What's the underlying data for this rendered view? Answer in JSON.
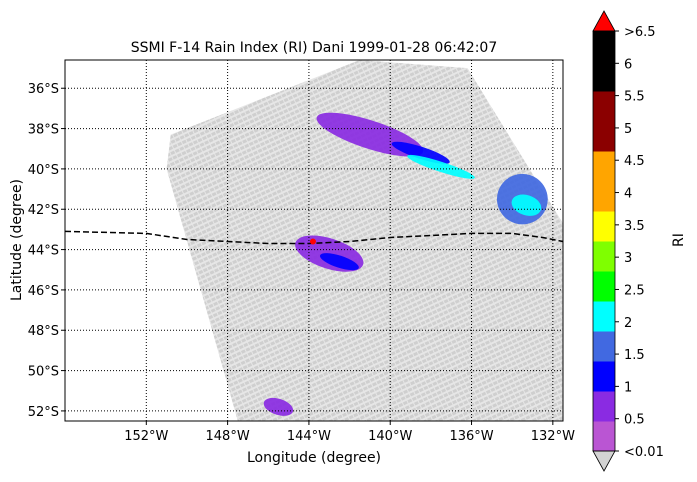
{
  "chart_data": {
    "type": "heatmap",
    "title": "SSMI F-14 Rain Index (RI) Dani 1999-01-28 06:42:07",
    "xlabel": "Longitude (degree)",
    "ylabel": "Latitude (degree)",
    "xlim": [
      -156.0,
      -131.5
    ],
    "ylim": [
      -52.5,
      -34.6
    ],
    "x_ticks": [
      -152,
      -148,
      -144,
      -140,
      -136,
      -132
    ],
    "x_tick_labels": [
      "152°W",
      "148°W",
      "144°W",
      "140°W",
      "136°W",
      "132°W"
    ],
    "y_ticks": [
      -36,
      -38,
      -40,
      -42,
      -44,
      -46,
      -48,
      -50,
      -52
    ],
    "y_tick_labels": [
      "36°S",
      "38°S",
      "40°S",
      "42°S",
      "44°S",
      "46°S",
      "48°S",
      "50°S",
      "52°S"
    ],
    "grid": "dotted",
    "colorbar": {
      "label": "RI",
      "boundaries": [
        0.01,
        0.5,
        1,
        1.5,
        2,
        2.5,
        3,
        3.5,
        4,
        4.5,
        5,
        5.5,
        6,
        6.5
      ],
      "tick_labels": [
        "<0.01",
        "0.5",
        "1",
        "1.5",
        "2",
        "2.5",
        "3",
        "3.5",
        "4",
        "4.5",
        "5",
        "5.5",
        "6",
        ">6.5"
      ],
      "colors": [
        "#ba55d3",
        "#8a2be2",
        "#0000ff",
        "#4169e1",
        "#00ffff",
        "#00ff00",
        "#7fff00",
        "#ffff00",
        "#ffa500",
        "#ffa500",
        "#8b0000",
        "#8b0000",
        "#000000",
        "#000000"
      ],
      "under_color": "#d3d3d3",
      "over_color": "#ff0000"
    },
    "swath": {
      "corners": [
        [
          -150.8,
          -38.3
        ],
        [
          -141.5,
          -34.6
        ],
        [
          -136.2,
          -35.0
        ],
        [
          -131.5,
          -42.7
        ],
        [
          -131.5,
          -52.5
        ],
        [
          -141.2,
          -52.5
        ],
        [
          -147.5,
          -52.5
        ],
        [
          -151.0,
          -40.0
        ]
      ],
      "background_value": "<0.01"
    },
    "rain_regions": [
      {
        "name": "northern band",
        "center": [
          -141.0,
          -38.3
        ],
        "extent": [
          5.5,
          1.4
        ],
        "RI": 0.5
      },
      {
        "name": "upper streak",
        "center": [
          -138.5,
          -39.2
        ],
        "extent": [
          3.0,
          0.6
        ],
        "RI": 1
      },
      {
        "name": "cyan band",
        "center": [
          -137.5,
          -39.9
        ],
        "extent": [
          3.5,
          0.5
        ],
        "RI": 2
      },
      {
        "name": "east core",
        "center": [
          -133.5,
          -41.5
        ],
        "extent": [
          2.5,
          2.5
        ],
        "RI": 1.5
      },
      {
        "name": "east cyan",
        "center": [
          -133.3,
          -41.8
        ],
        "extent": [
          1.5,
          1.0
        ],
        "RI": 2
      },
      {
        "name": "west band",
        "center": [
          -143.0,
          -44.2
        ],
        "extent": [
          3.5,
          1.5
        ],
        "RI": 0.5
      },
      {
        "name": "west core",
        "center": [
          -142.5,
          -44.6
        ],
        "extent": [
          2.0,
          0.6
        ],
        "RI": 1
      },
      {
        "name": "south patch",
        "center": [
          -145.5,
          -51.8
        ],
        "extent": [
          1.5,
          0.8
        ],
        "RI": 0.5
      }
    ],
    "track": {
      "style": "dashed",
      "color": "#000000",
      "lon": [
        -156.0,
        -152.0,
        -150.0,
        -148.0,
        -146.0,
        -144.0,
        -142.0,
        -140.0,
        -138.0,
        -136.0,
        -134.0,
        -132.5,
        -131.5
      ],
      "lat": [
        -43.1,
        -43.2,
        -43.5,
        -43.6,
        -43.7,
        -43.7,
        -43.6,
        -43.4,
        -43.3,
        -43.2,
        -43.2,
        -43.4,
        -43.6
      ]
    },
    "storm_center": {
      "lon": -143.8,
      "lat": -43.6,
      "color": "#ff0000"
    }
  }
}
